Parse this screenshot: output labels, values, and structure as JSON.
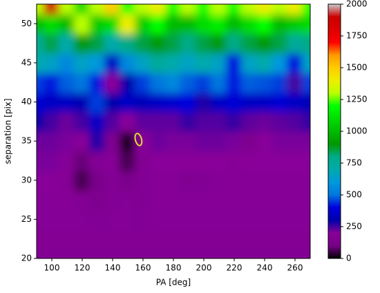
{
  "chart_data": {
    "type": "heatmap",
    "xlabel": "PA [deg]",
    "ylabel": "separation [pix]",
    "x": [
      90,
      100,
      110,
      120,
      130,
      140,
      150,
      160,
      170,
      180,
      190,
      200,
      210,
      220,
      230,
      240,
      250,
      260,
      270
    ],
    "y": [
      20,
      22.5,
      25,
      27.5,
      30,
      32.5,
      35,
      37.5,
      40,
      42.5,
      45,
      47.5,
      50,
      52.5
    ],
    "z": [
      [
        170,
        170,
        170,
        170,
        170,
        170,
        170,
        170,
        170,
        170,
        170,
        170,
        170,
        170,
        170,
        170,
        170,
        170,
        170
      ],
      [
        175,
        175,
        175,
        175,
        175,
        175,
        175,
        175,
        175,
        175,
        175,
        175,
        175,
        175,
        175,
        175,
        175,
        175,
        175
      ],
      [
        180,
        180,
        180,
        180,
        170,
        180,
        180,
        170,
        180,
        180,
        180,
        180,
        180,
        180,
        180,
        180,
        180,
        180,
        180
      ],
      [
        190,
        190,
        190,
        170,
        140,
        170,
        180,
        160,
        190,
        190,
        190,
        190,
        190,
        190,
        190,
        190,
        190,
        190,
        190
      ],
      [
        200,
        200,
        190,
        60,
        110,
        170,
        120,
        170,
        190,
        190,
        160,
        170,
        190,
        190,
        190,
        190,
        190,
        190,
        190
      ],
      [
        210,
        210,
        190,
        90,
        170,
        190,
        60,
        170,
        200,
        200,
        200,
        200,
        200,
        190,
        200,
        200,
        200,
        200,
        200
      ],
      [
        220,
        220,
        210,
        200,
        280,
        150,
        20,
        200,
        220,
        210,
        210,
        220,
        220,
        210,
        140,
        200,
        210,
        210,
        210
      ],
      [
        300,
        250,
        220,
        250,
        350,
        240,
        200,
        230,
        230,
        230,
        260,
        240,
        240,
        260,
        230,
        220,
        230,
        240,
        260
      ],
      [
        380,
        350,
        350,
        320,
        450,
        300,
        350,
        330,
        350,
        370,
        400,
        280,
        350,
        380,
        350,
        350,
        380,
        350,
        330
      ],
      [
        450,
        420,
        480,
        500,
        420,
        200,
        300,
        450,
        500,
        550,
        480,
        450,
        500,
        420,
        480,
        470,
        450,
        250,
        450
      ],
      [
        700,
        650,
        550,
        650,
        600,
        350,
        550,
        650,
        750,
        700,
        650,
        700,
        650,
        400,
        650,
        700,
        600,
        400,
        650
      ],
      [
        750,
        850,
        700,
        900,
        850,
        700,
        800,
        850,
        900,
        850,
        800,
        850,
        900,
        800,
        850,
        900,
        850,
        750,
        800
      ],
      [
        1000,
        1100,
        1000,
        1300,
        1050,
        1100,
        1400,
        1050,
        1200,
        1000,
        1000,
        1100,
        1150,
        1000,
        1100,
        1200,
        1000,
        1050,
        1100
      ],
      [
        1300,
        1850,
        1300,
        1100,
        1300,
        1500,
        1200,
        1300,
        1400,
        1200,
        1300,
        1200,
        1300,
        1200,
        1300,
        1400,
        1300,
        1400,
        1200
      ]
    ],
    "xlim": [
      90,
      270
    ],
    "xticks": [
      100,
      120,
      140,
      160,
      180,
      200,
      220,
      240,
      260
    ],
    "ylim": [
      20,
      52.5
    ],
    "yticks": [
      20,
      25,
      30,
      35,
      40,
      45,
      50
    ],
    "clim": [
      0,
      2000
    ],
    "cticks": [
      0,
      250,
      500,
      750,
      1000,
      1250,
      1500,
      1750,
      2000
    ],
    "colormap": [
      "#000000",
      "#770088",
      "#880099",
      "#0000aa",
      "#0000dd",
      "#0077dd",
      "#0099dd",
      "#00aaaa",
      "#00aa88",
      "#009900",
      "#00bb00",
      "#00dd00",
      "#00ff00",
      "#bbff00",
      "#eeee00",
      "#ffcc00",
      "#ff9900",
      "#ff0000",
      "#dd0000",
      "#cc0000",
      "#cccccc"
    ],
    "highlight": {
      "x": 157,
      "y": 35.2,
      "color": "#dddd33"
    }
  }
}
